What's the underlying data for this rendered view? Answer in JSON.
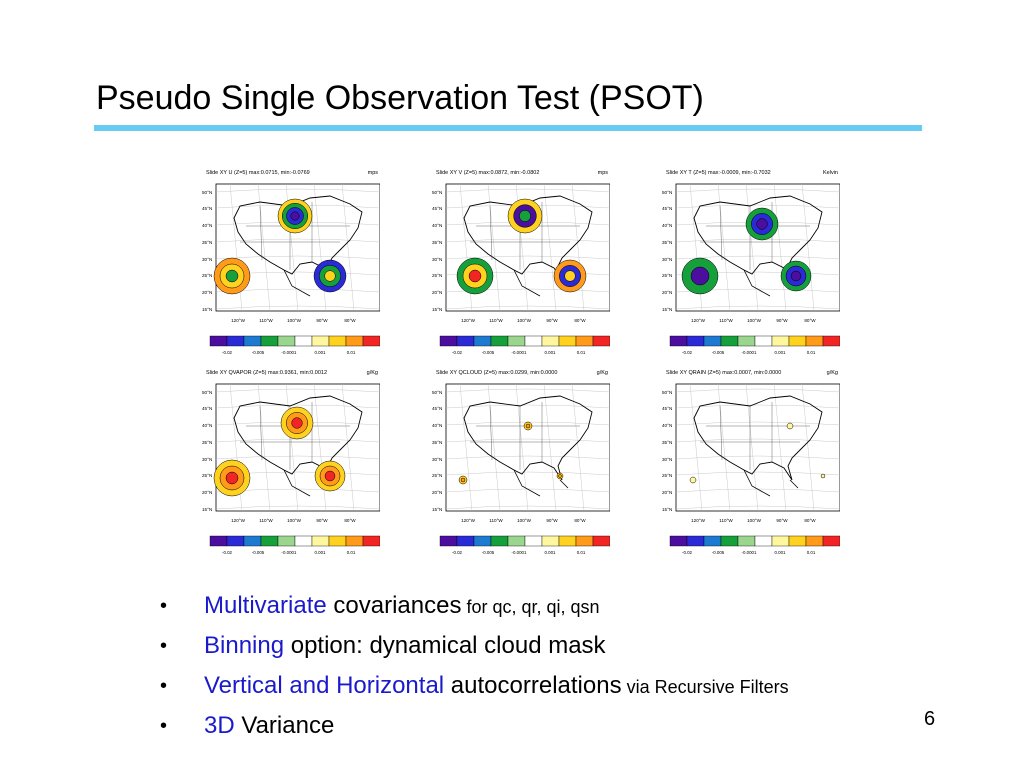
{
  "slide": {
    "title": "Pseudo Single Observation Test (PSOT)",
    "page_number": "6",
    "accent_color": "#66ccf2",
    "highlight_color": "#1a1acc"
  },
  "panels": [
    {
      "title": "Slide XY U (Z=5) max:0.0715, min:-0.0769",
      "unit": "mps"
    },
    {
      "title": "Slide XY V (Z=5) max:0.0872, min:-0.0802",
      "unit": "mps"
    },
    {
      "title": "Slide XY T (Z=5) max:-0.0009, min:-0.7032",
      "unit": "Kelvin"
    },
    {
      "title": "Slide XY QVAPOR (Z=5) max:0.9361, min:0.0012",
      "unit": "g/Kg"
    },
    {
      "title": "Slide XY QCLOUD (Z=5) max:0.0299, min:0.0000",
      "unit": "g/Kg"
    },
    {
      "title": "Slide XY QRAIN (Z=5) max:0.0007, min:0.0000",
      "unit": "g/Kg"
    }
  ],
  "map_axes": {
    "lat_labels": [
      "50°N",
      "45°N",
      "40°N",
      "35°N",
      "30°N",
      "25°N",
      "20°N",
      "15°N"
    ],
    "lon_labels": [
      "120°W",
      "110°W",
      "100°W",
      "90°W",
      "80°W"
    ]
  },
  "colorbar": {
    "colors": [
      "#4b0e9e",
      "#2a2ad6",
      "#1e7ad0",
      "#16a03c",
      "#9ad68e",
      "#ffffff",
      "#fff7a0",
      "#ffd21f",
      "#ff9a1a",
      "#f22525"
    ],
    "labels": [
      "-0.02",
      "-0.005",
      "-0.0001",
      "0.001",
      "0.01"
    ]
  },
  "bullets": [
    {
      "highlight": "Multivariate",
      "text": " covariances",
      "small": " for qc, qr, qi, qsn"
    },
    {
      "highlight": "Binning",
      "text": " option: dynamical cloud mask",
      "small": ""
    },
    {
      "highlight": "Vertical and Horizontal",
      "text": " autocorrelations",
      "small": " via Recursive Filters"
    },
    {
      "highlight": "3D",
      "text": " Variance",
      "small": ""
    }
  ]
}
